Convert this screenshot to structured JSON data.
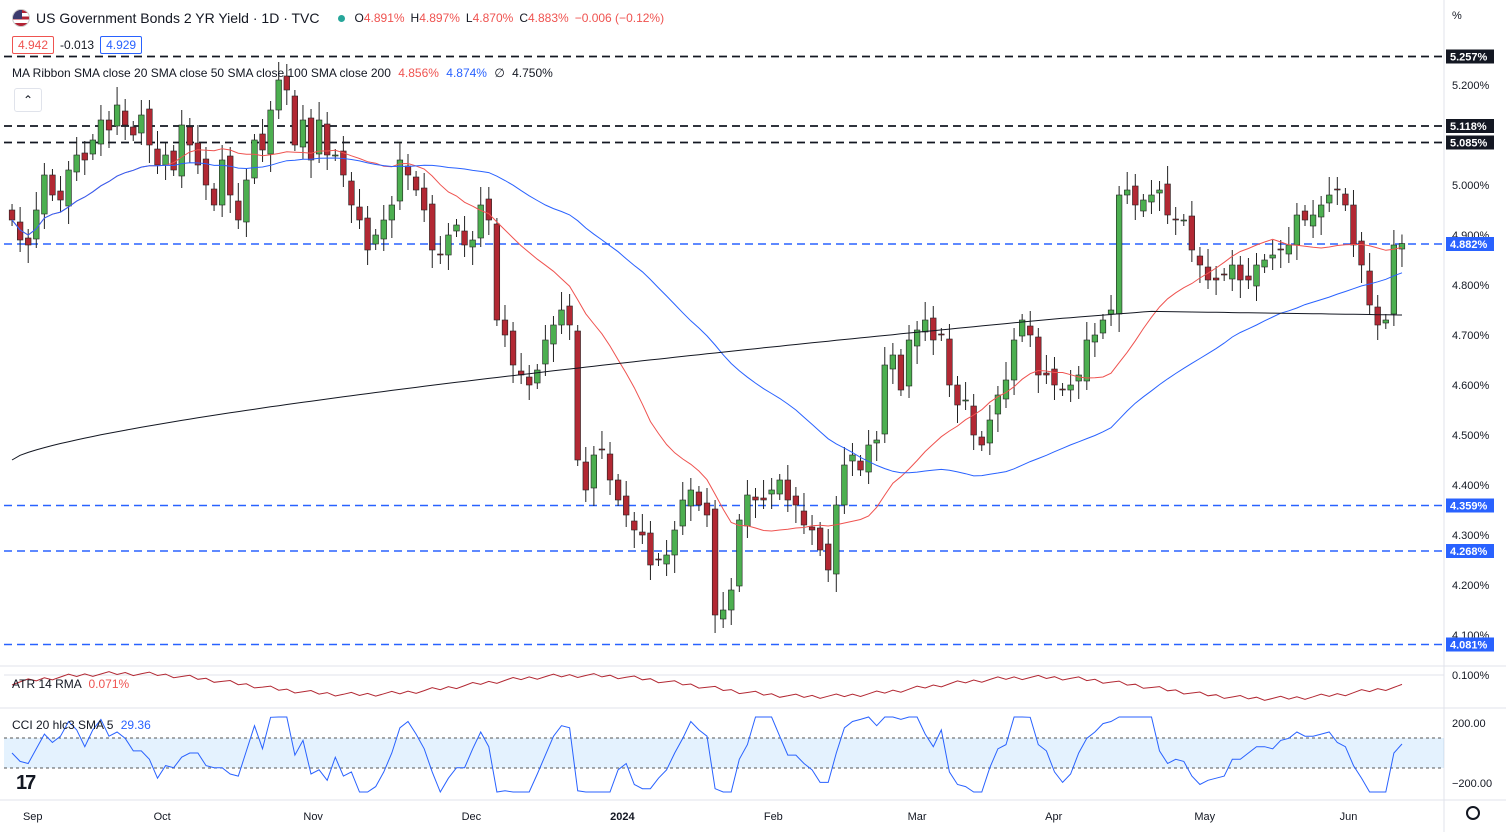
{
  "header": {
    "title": "US Government Bonds 2 YR Yield · 1D · TVC",
    "ohlc": [
      {
        "k": "O",
        "v": "4.891%"
      },
      {
        "k": "H",
        "v": "4.897%"
      },
      {
        "k": "L",
        "v": "4.870%"
      },
      {
        "k": "C",
        "v": "4.883%"
      },
      {
        "k": "",
        "v": "−0.006 (−0.12%)"
      }
    ],
    "bid": "4.942",
    "spread": "-0.013",
    "ask": "4.929"
  },
  "ma_ribbon": {
    "name": "MA Ribbon SMA close 20 SMA close 50 SMA close 100 SMA close 200",
    "v20": "4.856%",
    "v50": "4.874%",
    "v100": "∅",
    "v200": "4.750%"
  },
  "atr": {
    "name": "ATR 14 RMA",
    "value": "0.071%"
  },
  "cci": {
    "name": "CCI 20 hlc3 SMA 5",
    "value": "29.36"
  },
  "axis_unit": "%",
  "colors": {
    "up": "#26a69a",
    "up_candle": "#4caf50",
    "down": "#b22833",
    "sma20": "#ef5350",
    "sma50": "#2962ff",
    "sma200": "#131722",
    "hline": "#2962ff",
    "hline_black": "#131722"
  },
  "chart_data": {
    "type": "candlestick",
    "title": "US Government Bonds 2 YR Yield · 1D · TVC",
    "ylim": [
      4.04,
      5.31
    ],
    "x_labels": [
      "Sep",
      "Oct",
      "Nov",
      "Dec",
      "2024",
      "Feb",
      "Mar",
      "Apr",
      "May",
      "Jun"
    ],
    "y_ticks": [
      "5.200%",
      "5.000%",
      "4.900%",
      "4.800%",
      "4.700%",
      "4.600%",
      "4.500%",
      "4.400%",
      "4.300%",
      "4.200%",
      "4.100%"
    ],
    "horizontal_levels": [
      {
        "value": 5.257,
        "label": "5.257%",
        "style": "black-dash"
      },
      {
        "value": 5.118,
        "label": "5.118%",
        "style": "black-dash"
      },
      {
        "value": 5.085,
        "label": "5.085%",
        "style": "black-dash"
      },
      {
        "value": 4.882,
        "label": "4.882%",
        "style": "blue-dash"
      },
      {
        "value": 4.359,
        "label": "4.359%",
        "style": "blue-dash"
      },
      {
        "value": 4.268,
        "label": "4.268%",
        "style": "blue-dash"
      },
      {
        "value": 4.081,
        "label": "4.081%",
        "style": "blue-dash"
      }
    ],
    "close_series": [
      4.93,
      4.89,
      4.88,
      4.95,
      5.02,
      4.98,
      4.97,
      5.03,
      5.06,
      5.05,
      5.09,
      5.13,
      5.11,
      5.16,
      5.12,
      5.1,
      5.14,
      5.08,
      5.04,
      5.06,
      5.03,
      5.12,
      5.08,
      5.04,
      5.0,
      4.96,
      5.05,
      4.98,
      4.93,
      5.01,
      5.09,
      5.07,
      5.15,
      5.21,
      5.19,
      5.08,
      5.13,
      5.05,
      5.13,
      5.06,
      5.06,
      5.02,
      4.96,
      4.93,
      4.87,
      4.9,
      4.93,
      4.96,
      5.05,
      5.02,
      4.99,
      4.95,
      4.87,
      4.86,
      4.9,
      4.92,
      4.88,
      4.89,
      4.96,
      4.93,
      4.73,
      4.7,
      4.64,
      4.62,
      4.6,
      4.63,
      4.69,
      4.72,
      4.75,
      4.72,
      4.45,
      4.39,
      4.46,
      4.47,
      4.41,
      4.37,
      4.34,
      4.31,
      4.3,
      4.24,
      4.25,
      4.26,
      4.31,
      4.37,
      4.39,
      4.36,
      4.34,
      4.14,
      4.15,
      4.19,
      4.33,
      4.38,
      4.37,
      4.37,
      4.39,
      4.41,
      4.37,
      4.36,
      4.32,
      4.31,
      4.27,
      4.23,
      4.36,
      4.44,
      4.46,
      4.43,
      4.48,
      4.49,
      4.64,
      4.66,
      4.59,
      4.69,
      4.71,
      4.73,
      4.69,
      4.7,
      4.6,
      4.56,
      4.57,
      4.5,
      4.48,
      4.53,
      4.58,
      4.61,
      4.69,
      4.73,
      4.7,
      4.62,
      4.62,
      4.6,
      4.59,
      4.6,
      4.62,
      4.69,
      4.7,
      4.73,
      4.75,
      4.98,
      4.99,
      4.96,
      4.97,
      4.98,
      4.99,
      4.94,
      4.93,
      4.93,
      4.87,
      4.84,
      4.81,
      4.81,
      4.82,
      4.84,
      4.81,
      4.81,
      4.84,
      4.85,
      4.86,
      4.87,
      4.88,
      4.94,
      4.93,
      4.94,
      4.96,
      4.98,
      4.99,
      4.96,
      4.88,
      4.84,
      4.76,
      4.72,
      4.73,
      4.88,
      4.883
    ],
    "sma200_range": [
      4.45,
      4.75
    ],
    "atr_value": 0.071,
    "cci_value": 29.36
  }
}
